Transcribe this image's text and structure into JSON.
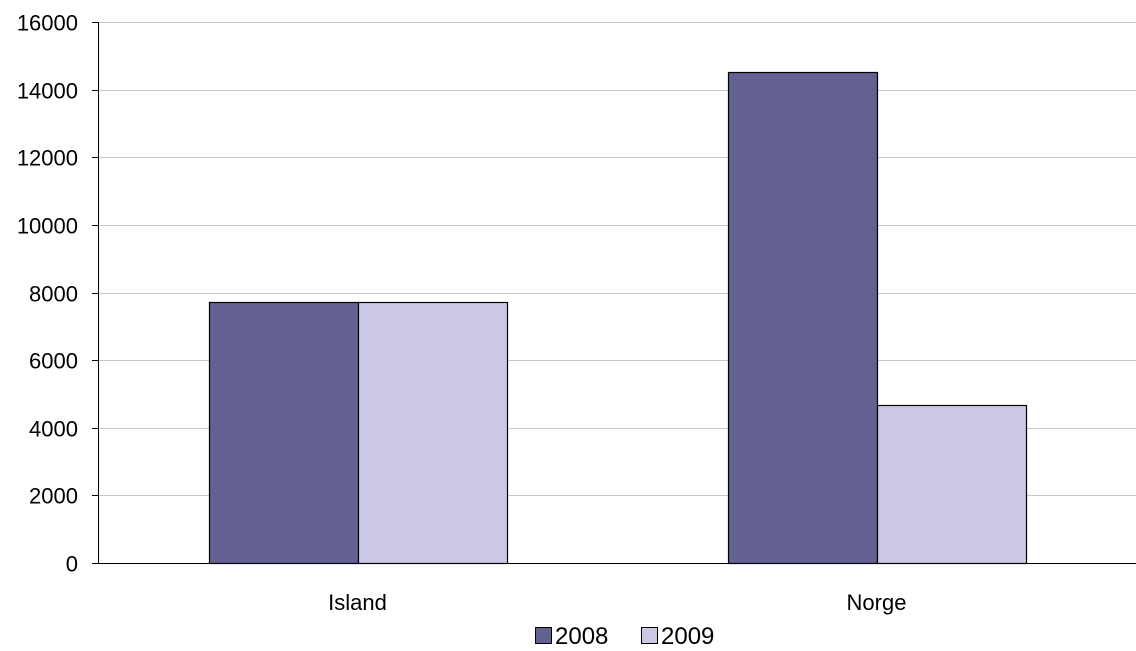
{
  "chart_data": {
    "type": "bar",
    "title": "",
    "xlabel": "",
    "ylabel": "",
    "categories": [
      "Island",
      "Norge"
    ],
    "series": [
      {
        "name": "2008",
        "values": [
          7720,
          14520
        ],
        "color": "#626191"
      },
      {
        "name": "2009",
        "values": [
          7720,
          4680
        ],
        "color": "#cbc8e6"
      }
    ],
    "ylim": [
      0,
      16000
    ],
    "yticks": [
      0,
      2000,
      4000,
      6000,
      8000,
      10000,
      12000,
      14000,
      16000
    ],
    "grid": true,
    "grid_color": "#c8c8c8",
    "legend_position": "bottom"
  }
}
